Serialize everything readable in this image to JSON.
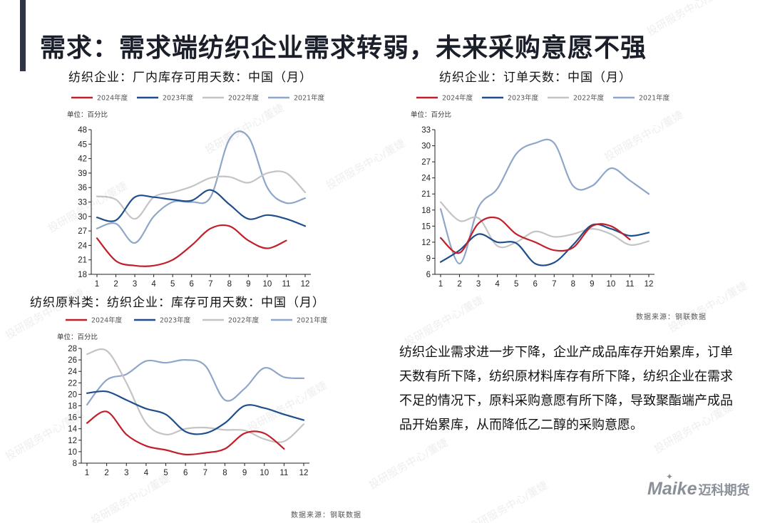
{
  "title": "需求：需求端纺织企业需求转弱，未来采购意愿不强",
  "description": "纺织企业需求进一步下降，企业产成品库存开始累库，订单天数有所下降，纺织原材料库存有所下降，纺织企业在需求不足的情况下，原料采购意愿有所下降，导致聚酯端产成品品开始累库，从而降低乙二醇的采购意愿。",
  "source_label": "数据来源：钢联数据",
  "watermark_text": "投研服务中心/董婕",
  "logo": {
    "brand": "Maike",
    "cn": "迈科期货"
  },
  "colors": {
    "y2024": "#c0202a",
    "y2023": "#1f4e8c",
    "y2022": "#c4c4c4",
    "y2021": "#8ea6c8",
    "title": "#1b1f2a",
    "accent": "#2f3544"
  },
  "chart_data": [
    {
      "type": "line",
      "title": "纺织企业：厂内库存可用天数：中国（月）",
      "unit": "单位：百分比",
      "categories": [
        "1",
        "2",
        "3",
        "4",
        "5",
        "6",
        "7",
        "8",
        "9",
        "10",
        "11",
        "12"
      ],
      "ylim": [
        18,
        48
      ],
      "yticks": [
        "18",
        "21",
        "24",
        "27",
        "30",
        "33",
        "36",
        "39",
        "42",
        "45",
        "48"
      ],
      "series": [
        {
          "name": "2024年度",
          "values": [
            25.5,
            20.8,
            19.8,
            19.8,
            21.0,
            24.0,
            27.5,
            28.0,
            25.0,
            23.4,
            25.0,
            null
          ]
        },
        {
          "name": "2023年度",
          "values": [
            29.8,
            29.2,
            34.0,
            34.0,
            33.5,
            33.3,
            35.5,
            32.5,
            29.5,
            30.3,
            29.5,
            28.0
          ]
        },
        {
          "name": "2022年度",
          "values": [
            34.2,
            33.5,
            29.5,
            34.0,
            35.0,
            36.2,
            38.0,
            38.2,
            37.0,
            39.0,
            39.0,
            35.0
          ]
        },
        {
          "name": "2021年度",
          "values": [
            27.5,
            28.5,
            24.5,
            30.0,
            33.0,
            33.0,
            34.0,
            46.0,
            46.5,
            36.0,
            32.8,
            33.8
          ]
        }
      ]
    },
    {
      "type": "line",
      "title": "纺织企业：订单天数：中国（月）",
      "unit": "单位：百分比",
      "categories": [
        "1",
        "2",
        "3",
        "4",
        "5",
        "6",
        "7",
        "8",
        "9",
        "10",
        "11",
        "12"
      ],
      "ylim": [
        6,
        33
      ],
      "yticks": [
        "6",
        "9",
        "12",
        "15",
        "18",
        "21",
        "24",
        "27",
        "30",
        "33"
      ],
      "series": [
        {
          "name": "2024年度",
          "values": [
            12.8,
            10.0,
            15.5,
            16.5,
            13.5,
            12.0,
            10.5,
            11.0,
            15.0,
            15.0,
            12.5,
            null
          ]
        },
        {
          "name": "2023年度",
          "values": [
            8.3,
            10.5,
            13.5,
            12.0,
            11.8,
            8.0,
            8.2,
            11.5,
            15.2,
            14.5,
            13.2,
            13.8
          ]
        },
        {
          "name": "2022年度",
          "values": [
            19.5,
            16.0,
            16.5,
            11.3,
            12.0,
            14.0,
            13.0,
            13.5,
            14.5,
            13.5,
            11.5,
            12.2
          ]
        },
        {
          "name": "2021年度",
          "values": [
            18.2,
            8.0,
            18.5,
            22.0,
            28.5,
            30.5,
            30.5,
            22.5,
            22.5,
            25.8,
            23.5,
            21.0
          ]
        }
      ]
    },
    {
      "type": "line",
      "title": "纺织原料类：纺织企业：库存可用天数：中国（月）",
      "unit": "单位：百分比",
      "categories": [
        "1",
        "2",
        "3",
        "4",
        "5",
        "6",
        "7",
        "8",
        "9",
        "10",
        "11",
        "12"
      ],
      "ylim": [
        8,
        28
      ],
      "yticks": [
        "8",
        "10",
        "12",
        "14",
        "16",
        "18",
        "20",
        "22",
        "24",
        "26",
        "28"
      ],
      "series": [
        {
          "name": "2024年度",
          "values": [
            15.0,
            17.0,
            13.0,
            11.0,
            10.3,
            9.5,
            9.8,
            10.5,
            13.2,
            13.2,
            10.5,
            null
          ]
        },
        {
          "name": "2023年度",
          "values": [
            20.2,
            20.5,
            19.0,
            17.5,
            16.5,
            13.5,
            13.2,
            15.0,
            18.0,
            17.6,
            16.5,
            15.5
          ]
        },
        {
          "name": "2022年度",
          "values": [
            27.0,
            27.6,
            22.0,
            15.0,
            13.0,
            14.0,
            14.2,
            13.8,
            13.7,
            12.2,
            11.8,
            14.8
          ]
        },
        {
          "name": "2021年度",
          "values": [
            18.2,
            22.5,
            23.5,
            25.8,
            25.5,
            26.0,
            25.0,
            19.0,
            21.0,
            24.6,
            23.0,
            22.8
          ]
        }
      ]
    }
  ]
}
